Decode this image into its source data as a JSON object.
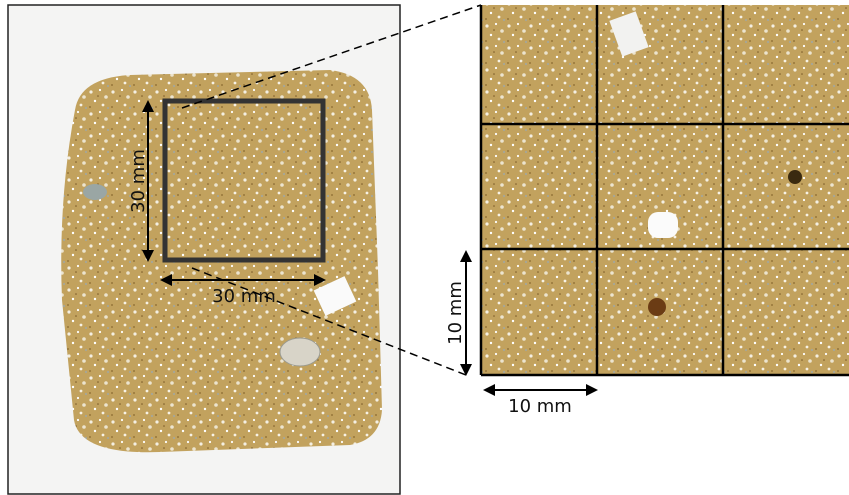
{
  "annotations": [
    "30 mm",
    "30 mm",
    "10 mm",
    "10 mm"
  ]
}
